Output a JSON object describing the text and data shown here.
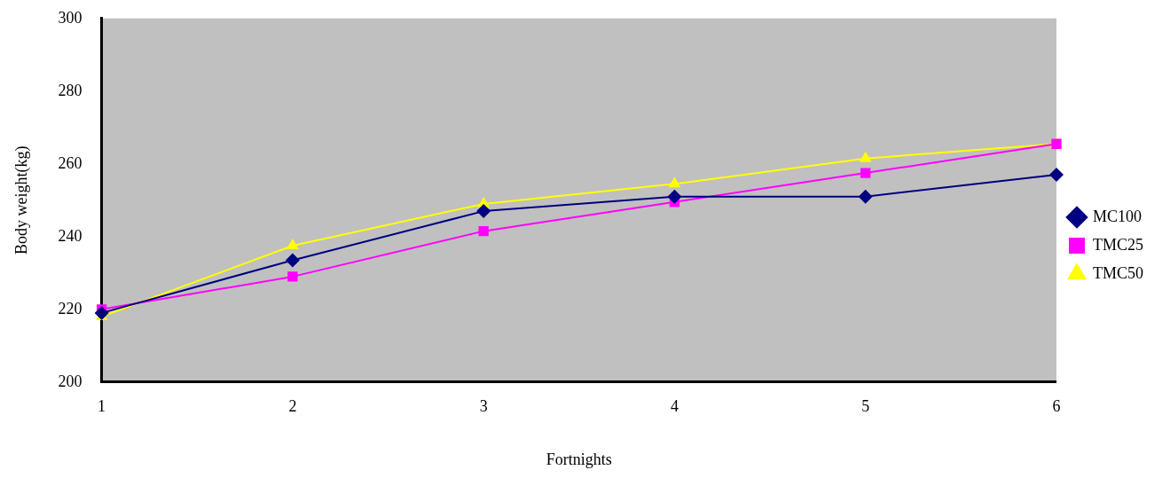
{
  "chart_data": {
    "type": "line",
    "xlabel": "Fortnights",
    "ylabel": "Body weight(kg)",
    "categories": [
      "1",
      "2",
      "3",
      "4",
      "5",
      "6"
    ],
    "series": [
      {
        "name": "MC100",
        "color": "#000080",
        "marker": "diamond",
        "values": [
          219,
          233.5,
          247,
          251,
          251,
          257
        ]
      },
      {
        "name": "TMC25",
        "color": "#ff00ff",
        "marker": "square",
        "values": [
          220,
          229,
          241.5,
          249.5,
          257.5,
          265.5
        ]
      },
      {
        "name": "TMC50",
        "color": "#ffff00",
        "marker": "triangle",
        "values": [
          218,
          237.5,
          249,
          254.5,
          261.5,
          265.5
        ]
      }
    ],
    "ylim": [
      200,
      300
    ],
    "yticks": [
      200,
      220,
      240,
      260,
      280,
      300
    ],
    "grid": false,
    "legend": "right",
    "line_style": "solid"
  }
}
